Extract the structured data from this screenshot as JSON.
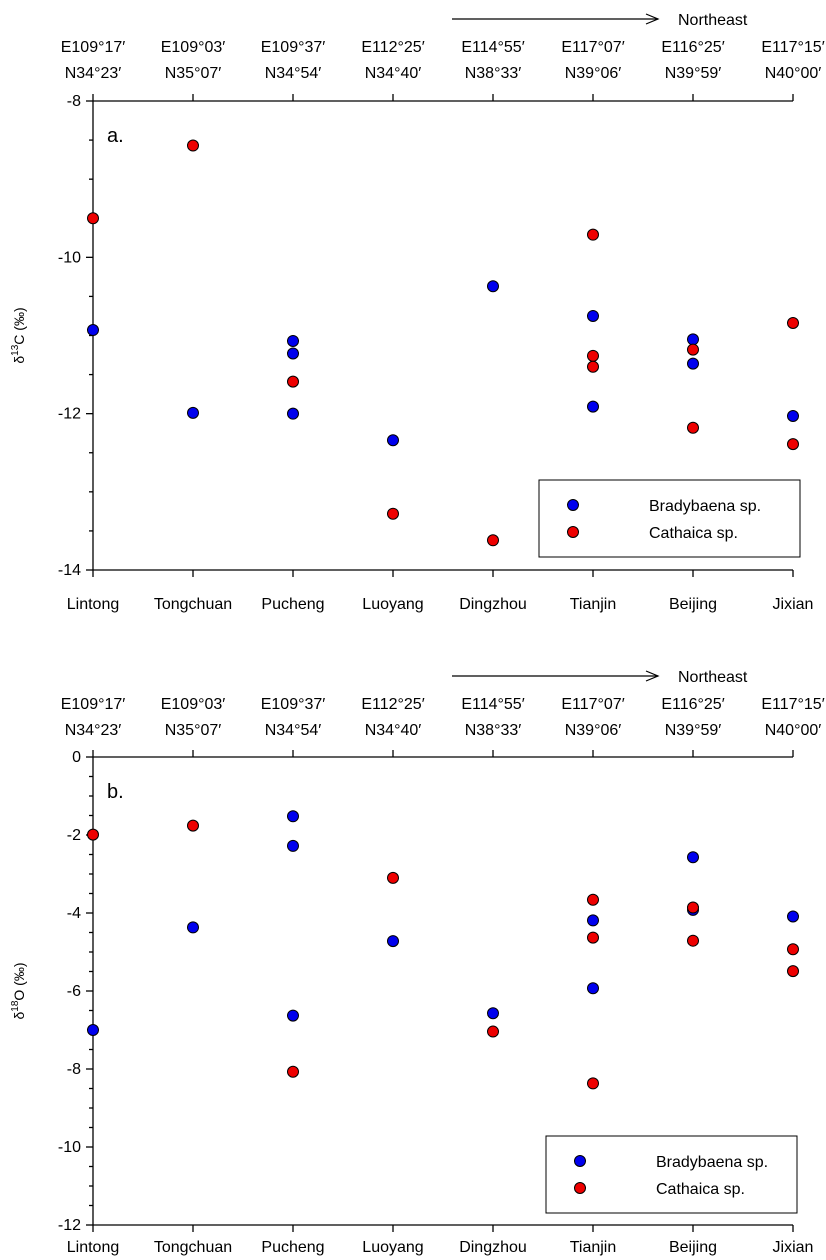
{
  "chart_data": [
    {
      "type": "scatter",
      "panel_label": "a.",
      "ylabel": "δ13C (‰)",
      "ylabel_parts": {
        "prefix": "δ",
        "sup": "13",
        "suffix": "C (‰)"
      },
      "ylim": [
        -14,
        -8
      ],
      "yticks": [
        -14,
        -12,
        -10,
        -8
      ],
      "yticks_labels": [
        "-14",
        "-12",
        "-10",
        "-8"
      ],
      "categories": [
        "Lintong",
        "Tongchuan",
        "Pucheng",
        "Luoyang",
        "Dingzhou",
        "Tianjin",
        "Beijing",
        "Jixian"
      ],
      "coordinates": [
        {
          "lon": "E109°17′",
          "lat": "N34°23′"
        },
        {
          "lon": "E109°03′",
          "lat": "N35°07′"
        },
        {
          "lon": "E109°37′",
          "lat": "N34°54′"
        },
        {
          "lon": "E112°25′",
          "lat": "N34°40′"
        },
        {
          "lon": "E114°55′",
          "lat": "N38°33′"
        },
        {
          "lon": "E117°07′",
          "lat": "N39°06′"
        },
        {
          "lon": "E116°25′",
          "lat": "N39°59′"
        },
        {
          "lon": "E117°15′",
          "lat": "N40°00′"
        }
      ],
      "arrow_label": "Northeast",
      "legend_position": "bottom-right",
      "series": [
        {
          "name": "Bradybaena sp.",
          "color": "#0000ee",
          "points": [
            [
              "Lintong",
              -10.93
            ],
            [
              "Tongchuan",
              -11.99
            ],
            [
              "Pucheng",
              -11.07
            ],
            [
              "Pucheng",
              -11.23
            ],
            [
              "Pucheng",
              -12.0
            ],
            [
              "Luoyang",
              -12.34
            ],
            [
              "Dingzhou",
              -10.37
            ],
            [
              "Tianjin",
              -10.75
            ],
            [
              "Tianjin",
              -11.91
            ],
            [
              "Beijing",
              -11.05
            ],
            [
              "Beijing",
              -11.36
            ],
            [
              "Jixian",
              -12.03
            ]
          ]
        },
        {
          "name": "Cathaica sp.",
          "color": "#ee0000",
          "points": [
            [
              "Lintong",
              -9.5
            ],
            [
              "Tongchuan",
              -8.57
            ],
            [
              "Pucheng",
              -11.59
            ],
            [
              "Luoyang",
              -13.28
            ],
            [
              "Dingzhou",
              -13.62
            ],
            [
              "Tianjin",
              -9.71
            ],
            [
              "Tianjin",
              -11.26
            ],
            [
              "Tianjin",
              -11.4
            ],
            [
              "Beijing",
              -11.18
            ],
            [
              "Beijing",
              -12.18
            ],
            [
              "Jixian",
              -10.84
            ],
            [
              "Jixian",
              -12.39
            ]
          ]
        }
      ]
    },
    {
      "type": "scatter",
      "panel_label": "b.",
      "ylabel": "δ18O (‰)",
      "ylabel_parts": {
        "prefix": "δ",
        "sup": "18",
        "suffix": "O (‰)"
      },
      "ylim": [
        -12,
        0
      ],
      "yticks": [
        -12,
        -10,
        -8,
        -6,
        -4,
        -2,
        0
      ],
      "yticks_labels": [
        "-12",
        "-10",
        "-8",
        "-6",
        "-4",
        "-2",
        "0"
      ],
      "categories": [
        "Lintong",
        "Tongchuan",
        "Pucheng",
        "Luoyang",
        "Dingzhou",
        "Tianjin",
        "Beijing",
        "Jixian"
      ],
      "coordinates": [
        {
          "lon": "E109°17′",
          "lat": "N34°23′"
        },
        {
          "lon": "E109°03′",
          "lat": "N35°07′"
        },
        {
          "lon": "E109°37′",
          "lat": "N34°54′"
        },
        {
          "lon": "E112°25′",
          "lat": "N34°40′"
        },
        {
          "lon": "E114°55′",
          "lat": "N38°33′"
        },
        {
          "lon": "E117°07′",
          "lat": "N39°06′"
        },
        {
          "lon": "E116°25′",
          "lat": "N39°59′"
        },
        {
          "lon": "E117°15′",
          "lat": "N40°00′"
        }
      ],
      "arrow_label": "Northeast",
      "legend_position": "bottom-right",
      "series": [
        {
          "name": "Bradybaena sp.",
          "color": "#0000ee",
          "points": [
            [
              "Lintong",
              -7.0
            ],
            [
              "Tongchuan",
              -4.37
            ],
            [
              "Pucheng",
              -1.52
            ],
            [
              "Pucheng",
              -2.28
            ],
            [
              "Pucheng",
              -6.63
            ],
            [
              "Luoyang",
              -4.72
            ],
            [
              "Dingzhou",
              -6.57
            ],
            [
              "Tianjin",
              -4.19
            ],
            [
              "Tianjin",
              -5.93
            ],
            [
              "Beijing",
              -2.57
            ],
            [
              "Beijing",
              -3.92
            ],
            [
              "Jixian",
              -4.09
            ]
          ]
        },
        {
          "name": "Cathaica sp.",
          "color": "#ee0000",
          "points": [
            [
              "Lintong",
              -1.99
            ],
            [
              "Tongchuan",
              -1.76
            ],
            [
              "Pucheng",
              -8.07
            ],
            [
              "Luoyang",
              -3.1
            ],
            [
              "Dingzhou",
              -7.04
            ],
            [
              "Tianjin",
              -3.66
            ],
            [
              "Tianjin",
              -4.63
            ],
            [
              "Tianjin",
              -8.37
            ],
            [
              "Beijing",
              -3.86
            ],
            [
              "Beijing",
              -4.71
            ],
            [
              "Jixian",
              -4.93
            ],
            [
              "Jixian",
              -5.49
            ]
          ]
        }
      ]
    }
  ]
}
